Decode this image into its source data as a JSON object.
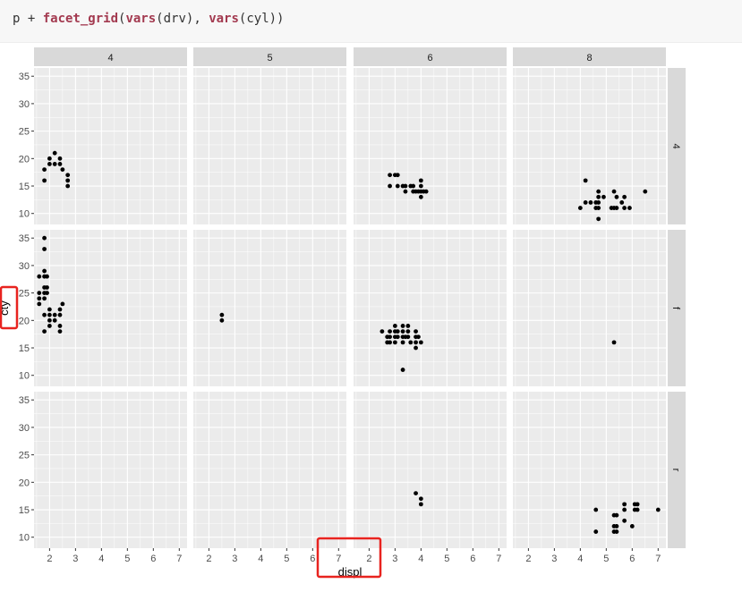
{
  "code": {
    "prompt": "p + ",
    "fn1": "facet_grid",
    "arg1_open": "(",
    "vars1": "vars",
    "arg1_val": "(drv), ",
    "vars2": "vars",
    "arg2_val": "(cyl))"
  },
  "chart_data": {
    "type": "scatter",
    "facet_type": "grid",
    "xlabel": "displ",
    "ylabel": "cty",
    "col_strips": [
      "4",
      "5",
      "6",
      "8"
    ],
    "row_strips": [
      "4",
      "f",
      "r"
    ],
    "xlim": [
      1.4,
      7.3
    ],
    "ylim": [
      8,
      36.5
    ],
    "x_ticks": [
      2,
      3,
      4,
      5,
      6,
      7
    ],
    "y_ticks": [
      10,
      15,
      20,
      25,
      30,
      35
    ],
    "grid": true,
    "panel_background": "#ebebeb",
    "strip_background": "#d9d9d9",
    "point_color": "#000000",
    "highlight_color": "#e8231f",
    "panels": [
      {
        "row": "4",
        "col": "4",
        "points": [
          [
            1.8,
            18
          ],
          [
            1.8,
            16
          ],
          [
            2.0,
            19
          ],
          [
            2.0,
            20
          ],
          [
            2.2,
            21
          ],
          [
            2.2,
            19
          ],
          [
            2.4,
            20
          ],
          [
            2.4,
            19
          ],
          [
            2.5,
            18
          ],
          [
            2.7,
            17
          ],
          [
            2.7,
            16
          ],
          [
            2.7,
            15
          ]
        ]
      },
      {
        "row": "4",
        "col": "5",
        "points": []
      },
      {
        "row": "4",
        "col": "6",
        "points": [
          [
            2.8,
            17
          ],
          [
            2.8,
            15
          ],
          [
            3.0,
            17
          ],
          [
            3.1,
            17
          ],
          [
            3.1,
            15
          ],
          [
            3.3,
            15
          ],
          [
            3.4,
            15
          ],
          [
            3.4,
            14
          ],
          [
            3.6,
            15
          ],
          [
            3.7,
            14
          ],
          [
            3.7,
            15
          ],
          [
            3.8,
            14
          ],
          [
            3.9,
            14
          ],
          [
            4.0,
            16
          ],
          [
            4.0,
            15
          ],
          [
            4.0,
            14
          ],
          [
            4.0,
            13
          ],
          [
            4.1,
            14
          ],
          [
            4.2,
            14
          ]
        ]
      },
      {
        "row": "4",
        "col": "8",
        "points": [
          [
            4.0,
            11
          ],
          [
            4.2,
            12
          ],
          [
            4.4,
            12
          ],
          [
            4.6,
            12
          ],
          [
            4.6,
            11
          ],
          [
            4.7,
            14
          ],
          [
            4.7,
            13
          ],
          [
            4.7,
            12
          ],
          [
            4.7,
            11
          ],
          [
            4.7,
            9
          ],
          [
            4.9,
            13
          ],
          [
            5.2,
            11
          ],
          [
            5.3,
            14
          ],
          [
            5.3,
            11
          ],
          [
            5.4,
            13
          ],
          [
            5.4,
            11
          ],
          [
            5.6,
            12
          ],
          [
            5.7,
            13
          ],
          [
            5.7,
            11
          ],
          [
            5.9,
            11
          ],
          [
            6.5,
            14
          ],
          [
            4.2,
            16
          ]
        ]
      },
      {
        "row": "f",
        "col": "4",
        "points": [
          [
            1.6,
            28
          ],
          [
            1.6,
            25
          ],
          [
            1.6,
            24
          ],
          [
            1.6,
            23
          ],
          [
            1.8,
            35
          ],
          [
            1.8,
            33
          ],
          [
            1.8,
            29
          ],
          [
            1.8,
            28
          ],
          [
            1.8,
            26
          ],
          [
            1.8,
            25
          ],
          [
            1.8,
            24
          ],
          [
            1.8,
            21
          ],
          [
            1.8,
            18
          ],
          [
            1.9,
            28
          ],
          [
            1.9,
            26
          ],
          [
            1.9,
            25
          ],
          [
            2.0,
            22
          ],
          [
            2.0,
            21
          ],
          [
            2.0,
            20
          ],
          [
            2.0,
            19
          ],
          [
            2.2,
            21
          ],
          [
            2.2,
            20
          ],
          [
            2.4,
            22
          ],
          [
            2.4,
            21
          ],
          [
            2.4,
            19
          ],
          [
            2.4,
            18
          ],
          [
            2.5,
            23
          ]
        ]
      },
      {
        "row": "f",
        "col": "5",
        "points": [
          [
            2.5,
            21
          ],
          [
            2.5,
            20
          ]
        ]
      },
      {
        "row": "f",
        "col": "6",
        "points": [
          [
            2.5,
            18
          ],
          [
            2.7,
            17
          ],
          [
            2.7,
            16
          ],
          [
            2.8,
            18
          ],
          [
            2.8,
            17
          ],
          [
            2.8,
            16
          ],
          [
            3.0,
            19
          ],
          [
            3.0,
            18
          ],
          [
            3.0,
            17
          ],
          [
            3.0,
            16
          ],
          [
            3.1,
            18
          ],
          [
            3.1,
            17
          ],
          [
            3.3,
            19
          ],
          [
            3.3,
            18
          ],
          [
            3.3,
            17
          ],
          [
            3.3,
            16
          ],
          [
            3.4,
            17
          ],
          [
            3.5,
            19
          ],
          [
            3.5,
            18
          ],
          [
            3.5,
            17
          ],
          [
            3.6,
            16
          ],
          [
            3.8,
            18
          ],
          [
            3.8,
            17
          ],
          [
            3.8,
            16
          ],
          [
            3.8,
            15
          ],
          [
            3.9,
            17
          ],
          [
            4.0,
            16
          ],
          [
            3.3,
            11
          ]
        ]
      },
      {
        "row": "f",
        "col": "8",
        "points": [
          [
            5.3,
            16
          ]
        ]
      },
      {
        "row": "r",
        "col": "4",
        "points": []
      },
      {
        "row": "r",
        "col": "5",
        "points": []
      },
      {
        "row": "r",
        "col": "6",
        "points": [
          [
            3.8,
            18
          ],
          [
            4.0,
            17
          ],
          [
            4.0,
            16
          ]
        ]
      },
      {
        "row": "r",
        "col": "8",
        "points": [
          [
            4.6,
            15
          ],
          [
            4.6,
            11
          ],
          [
            5.3,
            14
          ],
          [
            5.3,
            12
          ],
          [
            5.3,
            11
          ],
          [
            5.4,
            14
          ],
          [
            5.4,
            12
          ],
          [
            5.4,
            11
          ],
          [
            5.7,
            16
          ],
          [
            5.7,
            15
          ],
          [
            5.7,
            13
          ],
          [
            6.0,
            12
          ],
          [
            6.1,
            16
          ],
          [
            6.1,
            15
          ],
          [
            6.2,
            16
          ],
          [
            6.2,
            15
          ],
          [
            7.0,
            15
          ]
        ]
      }
    ]
  }
}
